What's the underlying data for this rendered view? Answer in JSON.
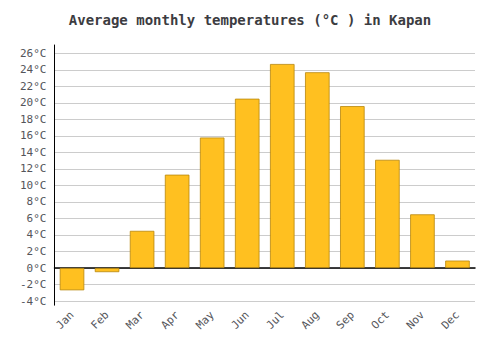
{
  "chart_data": {
    "type": "bar",
    "title": "Average monthly temperatures (°C ) in Kapan",
    "categories": [
      "Jan",
      "Feb",
      "Mar",
      "Apr",
      "May",
      "Jun",
      "Jul",
      "Aug",
      "Sep",
      "Oct",
      "Nov",
      "Dec"
    ],
    "values": [
      -2.7,
      -0.5,
      4.5,
      11.3,
      15.8,
      20.5,
      24.7,
      23.7,
      19.6,
      13.1,
      6.5,
      0.9
    ],
    "color": "#FFC020",
    "ylim": [
      -4.5,
      27
    ],
    "yticks": [
      {
        "value": -4,
        "label": "-4°C"
      },
      {
        "value": -2,
        "label": "-2°C"
      },
      {
        "value": 0,
        "label": "0°C"
      },
      {
        "value": 2,
        "label": "2°C"
      },
      {
        "value": 4,
        "label": "4°C"
      },
      {
        "value": 6,
        "label": "6°C"
      },
      {
        "value": 8,
        "label": "8°C"
      },
      {
        "value": 10,
        "label": "10°C"
      },
      {
        "value": 12,
        "label": "12°C"
      },
      {
        "value": 14,
        "label": "14°C"
      },
      {
        "value": 16,
        "label": "16°C"
      },
      {
        "value": 18,
        "label": "18°C"
      },
      {
        "value": 20,
        "label": "20°C"
      },
      {
        "value": 22,
        "label": "22°C"
      },
      {
        "value": 24,
        "label": "24°C"
      },
      {
        "value": 26,
        "label": "26°C"
      }
    ],
    "grid": true
  }
}
